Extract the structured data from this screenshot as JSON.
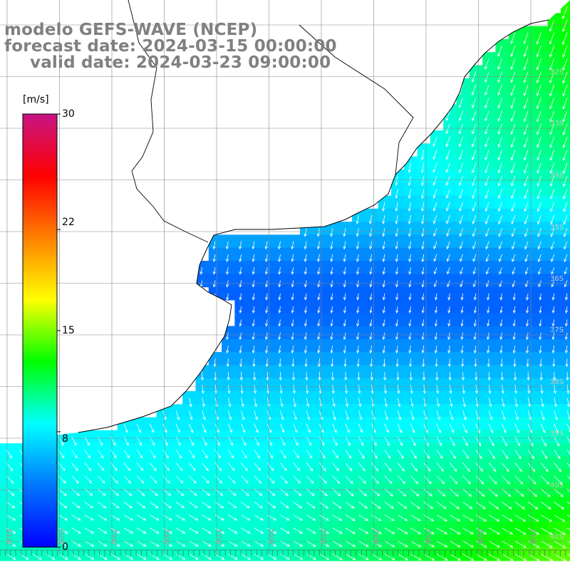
{
  "title": {
    "model": "modelo GEFS-WAVE (NCEP)",
    "forecast": "forecast date: 2024-03-15 00:00:00",
    "valid": "valid date: 2024-03-23 09:00:00"
  },
  "colorbar": {
    "unit": "[m/s]",
    "ticks": [
      "30",
      "22",
      "15",
      "8",
      "0"
    ],
    "tick_values": [
      30,
      22,
      15,
      8,
      0
    ],
    "range": [
      0,
      30
    ],
    "stops": [
      "#0000ff",
      "#0077ff",
      "#00ffff",
      "#00ff00",
      "#ffff00",
      "#ff8000",
      "#ff0000",
      "#c71585"
    ]
  },
  "map": {
    "variable": "wind speed and direction",
    "lat_labels": [
      "32S",
      "33S",
      "34S",
      "35S",
      "36S",
      "37S",
      "38S",
      "39S",
      "40S",
      "41S"
    ],
    "lon_labels": [
      "61W",
      "60W",
      "59W",
      "58W",
      "57W",
      "56W",
      "55W",
      "54W",
      "53W",
      "52W",
      "51W"
    ],
    "land_color": "#ffffff",
    "grid_color": "#888888",
    "coast_color": "#000000",
    "arrow_color": "#ffffff"
  }
}
